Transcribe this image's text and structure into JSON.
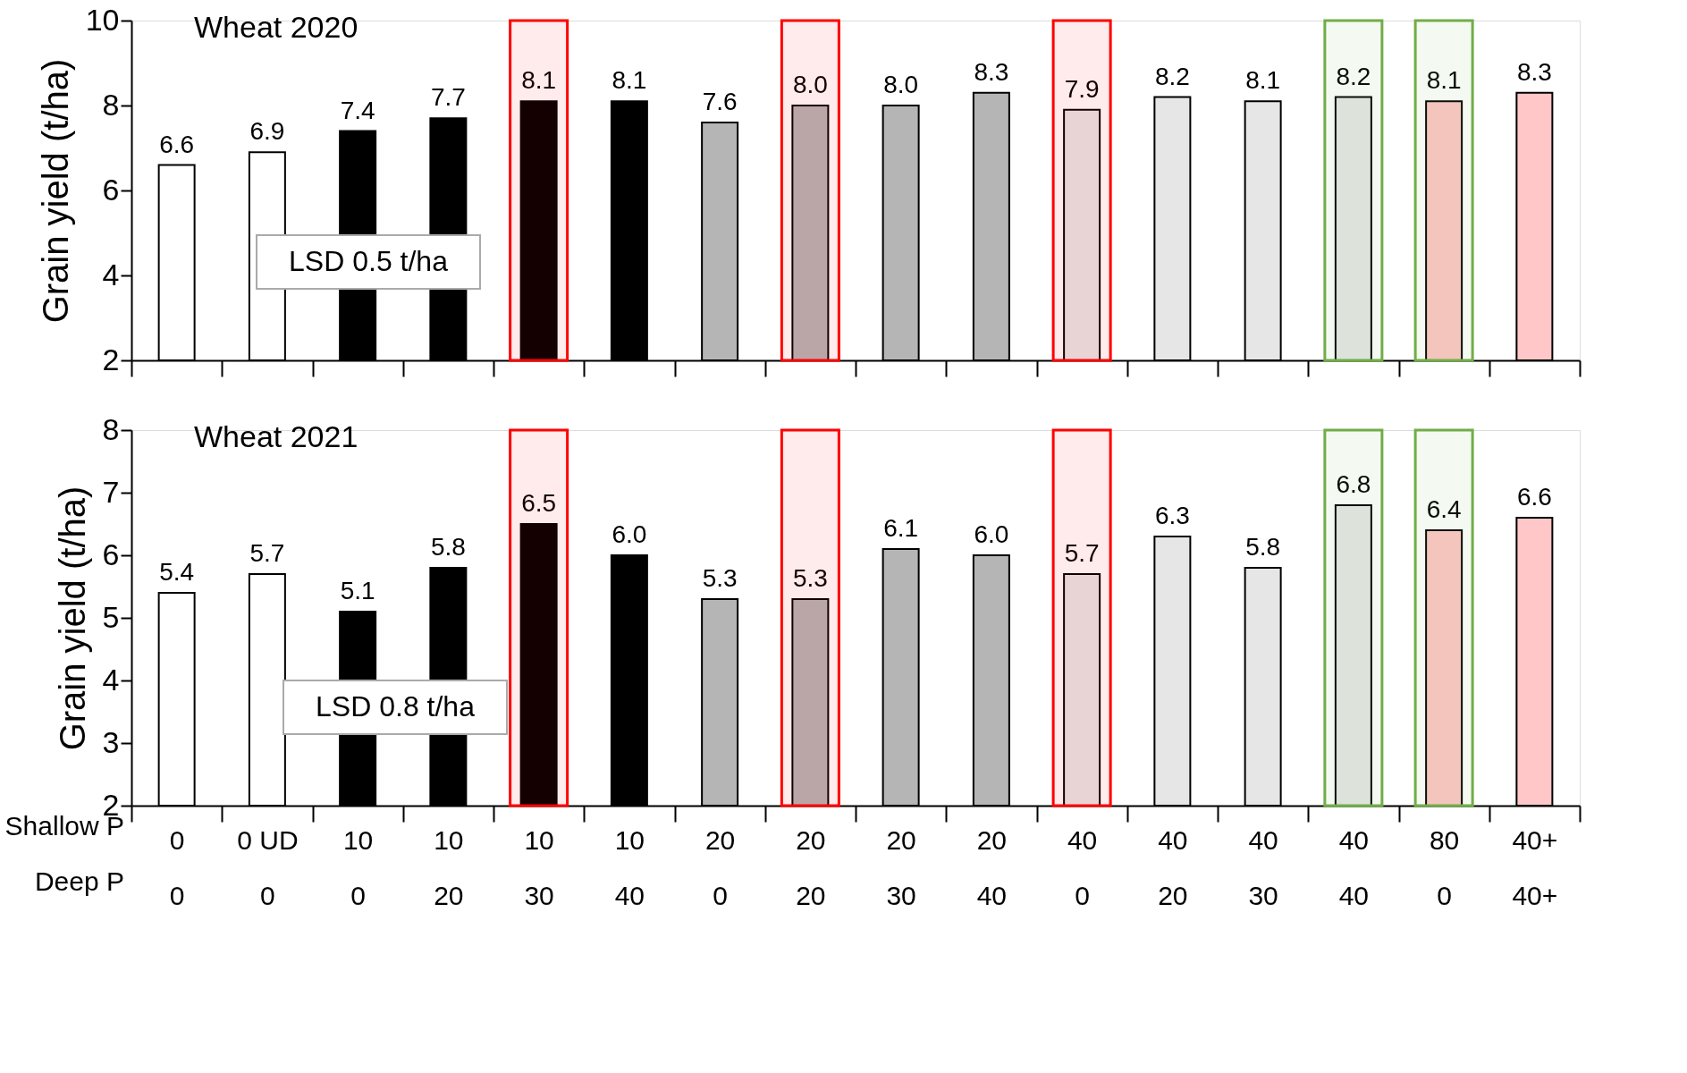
{
  "chart_data": [
    {
      "type": "bar",
      "title": "Wheat 2020",
      "ylabel": "Grain yield  (t/ha)",
      "categories": [
        "0\n0",
        "0 UD\n0",
        "10\n0",
        "10\n20",
        "10\n30",
        "10\n40",
        "20\n0",
        "20\n20",
        "20\n30",
        "20\n40",
        "40\n0",
        "40\n20",
        "40\n30",
        "40\n40",
        "80\n0",
        "40+\n40+"
      ],
      "values": [
        6.6,
        6.9,
        7.4,
        7.7,
        8.1,
        8.1,
        7.6,
        8.0,
        8.0,
        8.3,
        7.9,
        8.2,
        8.1,
        8.2,
        8.1,
        8.3
      ],
      "colors": [
        "#ffffff",
        "#ffffff",
        "#000000",
        "#000000",
        "#000000",
        "#000000",
        "#b5b5b5",
        "#b5b5b5",
        "#b5b5b5",
        "#b5b5b5",
        "#e6e6e6",
        "#e6e6e6",
        "#e6e6e6",
        "#e6e6e6",
        "#ffc7c7",
        "#ffc7c7"
      ],
      "value_labels": [
        "6.6",
        "6.9",
        "7.4",
        "7.7",
        "8.1",
        "8.1",
        "7.6",
        "8.0",
        "8.0",
        "8.3",
        "7.9",
        "8.2",
        "8.1",
        "8.2",
        "8.1",
        "8.3"
      ],
      "ylim": [
        2,
        10
      ],
      "yticks": [
        2,
        4,
        6,
        8,
        10
      ],
      "grid": false,
      "tick_labels": "y",
      "bands": [
        {
          "axis": "x",
          "from": "10\n30",
          "to": "10\n30",
          "color": "#ff0000"
        },
        {
          "axis": "x",
          "from": "20\n20",
          "to": "20\n20",
          "color": "#ff0000"
        },
        {
          "axis": "x",
          "from": "40\n0",
          "to": "40\n0",
          "color": "#ff0000"
        },
        {
          "axis": "x",
          "from": "40\n40",
          "to": "40\n40",
          "color": "#70ad47"
        },
        {
          "axis": "x",
          "from": "80\n0",
          "to": "80\n0",
          "color": "#70ad47"
        }
      ],
      "annotations": [
        "LSD 0.5 t/ha"
      ]
    },
    {
      "type": "bar",
      "title": "Wheat 2021",
      "ylabel": "Grain yield (t/ha)",
      "categories": [
        "0\n0",
        "0 UD\n0",
        "10\n0",
        "10\n20",
        "10\n30",
        "10\n40",
        "20\n0",
        "20\n20",
        "20\n30",
        "20\n40",
        "40\n0",
        "40\n20",
        "40\n30",
        "40\n40",
        "80\n0",
        "40+\n40+"
      ],
      "values": [
        5.4,
        5.7,
        5.1,
        5.8,
        6.5,
        6.0,
        5.3,
        5.3,
        6.1,
        6.0,
        5.7,
        6.3,
        5.8,
        6.8,
        6.4,
        6.6
      ],
      "colors": [
        "#ffffff",
        "#ffffff",
        "#000000",
        "#000000",
        "#000000",
        "#000000",
        "#b5b5b5",
        "#b5b5b5",
        "#b5b5b5",
        "#b5b5b5",
        "#e6e6e6",
        "#e6e6e6",
        "#e6e6e6",
        "#e6e6e6",
        "#ffc7c7",
        "#ffc7c7"
      ],
      "value_labels": [
        "5.4",
        "5.7",
        "5.1",
        "5.8",
        "6.5",
        "6.0",
        "5.3",
        "5.3",
        "6.1",
        "6.0",
        "5.7",
        "6.3",
        "5.8",
        "6.8",
        "6.4",
        "6.6"
      ],
      "ylim": [
        2,
        8
      ],
      "yticks": [
        2,
        3,
        4,
        5,
        6,
        7,
        8
      ],
      "grid": false,
      "bands": [
        {
          "axis": "x",
          "from": "10\n30",
          "to": "10\n30",
          "color": "#ff0000"
        },
        {
          "axis": "x",
          "from": "20\n20",
          "to": "20\n20",
          "color": "#ff0000"
        },
        {
          "axis": "x",
          "from": "40\n0",
          "to": "40\n0",
          "color": "#ff0000"
        },
        {
          "axis": "x",
          "from": "40\n40",
          "to": "40\n40",
          "color": "#70ad47"
        },
        {
          "axis": "x",
          "from": "80\n0",
          "to": "80\n0",
          "color": "#70ad47"
        }
      ],
      "annotations": [
        "LSD 0.8 t/ha",
        "Shallow P",
        "Deep P"
      ]
    }
  ]
}
